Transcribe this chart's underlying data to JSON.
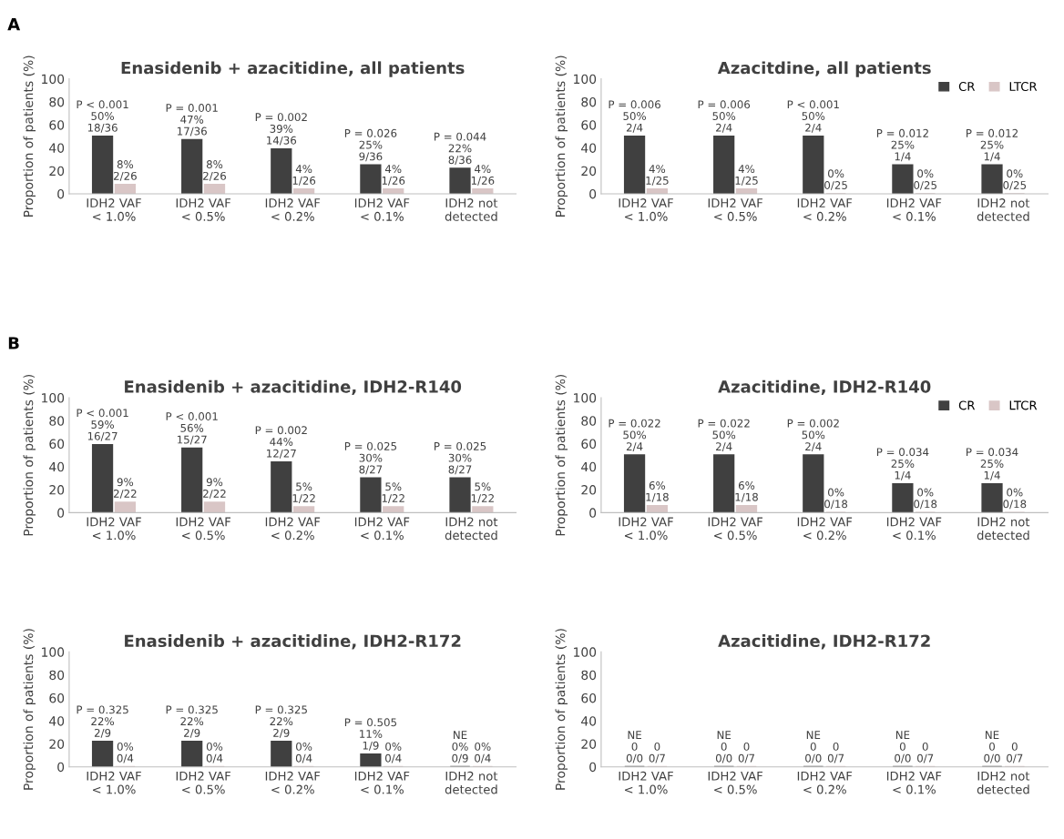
{
  "chart_data": [
    {
      "type": "bar",
      "title": "Enasidenib + azacitidine, all patients",
      "ylabel": "Proportion of patients (%)",
      "categories": [
        "IDH2 VAF\n< 1.0%",
        "IDH2 VAF\n< 0.5%",
        "IDH2 VAF\n< 0.2%",
        "IDH2 VAF\n< 0.1%",
        "IDH2 not\ndetected"
      ],
      "ylim": [
        0,
        100
      ],
      "yticks": [
        0,
        20,
        40,
        60,
        80,
        100
      ],
      "annotations": [
        "A"
      ],
      "series": [
        {
          "color": "#404040",
          "values": [
            50,
            47,
            39,
            25,
            22
          ],
          "value_labels": [
            "P < 0.001\n50%\n18/36",
            "P = 0.001\n47%\n17/36",
            "P = 0.002\n39%\n14/36",
            "P = 0.026\n25%\n9/36",
            "P = 0.044\n22%\n8/36"
          ]
        },
        {
          "color": "#d9c6c6",
          "values": [
            8,
            8,
            4,
            4,
            4
          ],
          "value_labels": [
            "8%\n2/26",
            "8%\n2/26",
            "4%\n1/26",
            "4%\n1/26",
            "4%\n1/26"
          ]
        }
      ]
    },
    {
      "type": "bar",
      "title": "Azacitdine, all patients",
      "ylabel": "Proportion of patients (%)",
      "categories": [
        "IDH2 VAF\n< 1.0%",
        "IDH2 VAF\n< 0.5%",
        "IDH2 VAF\n< 0.2%",
        "IDH2 VAF\n< 0.1%",
        "IDH2 not\ndetected"
      ],
      "ylim": [
        0,
        100
      ],
      "yticks": [
        0,
        20,
        40,
        60,
        80,
        100
      ],
      "legend": "top right",
      "series": [
        {
          "name": "CR",
          "color": "#404040",
          "values": [
            50,
            50,
            50,
            25,
            25
          ],
          "value_labels": [
            "P = 0.006\n50%\n2/4",
            "P = 0.006\n50%\n2/4",
            "P < 0.001\n50%\n2/4",
            "P = 0.012\n25%\n1/4",
            "P = 0.012\n25%\n1/4"
          ]
        },
        {
          "name": "LTCR",
          "color": "#d9c6c6",
          "values": [
            4,
            4,
            0,
            0,
            0
          ],
          "value_labels": [
            "4%\n1/25",
            "4%\n1/25",
            "0%\n0/25",
            "0%\n0/25",
            "0%\n0/25"
          ]
        }
      ]
    },
    {
      "type": "bar",
      "title": "Enasidenib + azacitidine, IDH2-R140",
      "ylabel": "Proportion of patients (%)",
      "categories": [
        "IDH2 VAF\n< 1.0%",
        "IDH2 VAF\n< 0.5%",
        "IDH2 VAF\n< 0.2%",
        "IDH2 VAF\n< 0.1%",
        "IDH2 not\ndetected"
      ],
      "ylim": [
        0,
        100
      ],
      "yticks": [
        0,
        20,
        40,
        60,
        80,
        100
      ],
      "annotations": [
        "B"
      ],
      "series": [
        {
          "color": "#404040",
          "values": [
            59,
            56,
            44,
            30,
            30
          ],
          "value_labels": [
            "P < 0.001\n59%\n16/27",
            "P < 0.001\n56%\n15/27",
            "P = 0.002\n44%\n12/27",
            "P = 0.025\n30%\n8/27",
            "P = 0.025\n30%\n8/27"
          ]
        },
        {
          "color": "#d9c6c6",
          "values": [
            9,
            9,
            5,
            5,
            5
          ],
          "value_labels": [
            "9%\n2/22",
            "9%\n2/22",
            "5%\n1/22",
            "5%\n1/22",
            "5%\n1/22"
          ]
        }
      ]
    },
    {
      "type": "bar",
      "title": "Azacitidine, IDH2-R140",
      "ylabel": "Proportion of patients (%)",
      "categories": [
        "IDH2 VAF\n< 1.0%",
        "IDH2 VAF\n< 0.5%",
        "IDH2 VAF\n< 0.2%",
        "IDH2 VAF\n< 0.1%",
        "IDH2 not\ndetected"
      ],
      "ylim": [
        0,
        100
      ],
      "yticks": [
        0,
        20,
        40,
        60,
        80,
        100
      ],
      "legend": "top right",
      "series": [
        {
          "name": "CR",
          "color": "#404040",
          "values": [
            50,
            50,
            50,
            25,
            25
          ],
          "value_labels": [
            "P = 0.022\n50%\n2/4",
            "P = 0.022\n50%\n2/4",
            "P = 0.002\n50%\n2/4",
            "P = 0.034\n25%\n1/4",
            "P = 0.034\n25%\n1/4"
          ]
        },
        {
          "name": "LTCR",
          "color": "#d9c6c6",
          "values": [
            6,
            6,
            0,
            0,
            0
          ],
          "value_labels": [
            "6%\n1/18",
            "6%\n1/18",
            "0%\n0/18",
            "0%\n0/18",
            "0%\n0/18"
          ]
        }
      ]
    },
    {
      "type": "bar",
      "title": "Enasidenib + azacitidine, IDH2-R172",
      "ylabel": "Proportion of patients (%)",
      "categories": [
        "IDH2 VAF\n< 1.0%",
        "IDH2 VAF\n< 0.5%",
        "IDH2 VAF\n< 0.2%",
        "IDH2 VAF\n< 0.1%",
        "IDH2 not\ndetected"
      ],
      "ylim": [
        0,
        100
      ],
      "yticks": [
        0,
        20,
        40,
        60,
        80,
        100
      ],
      "series": [
        {
          "color": "#404040",
          "values": [
            22,
            22,
            22,
            11,
            0
          ],
          "value_labels": [
            "P = 0.325\n22%\n2/9",
            "P = 0.325\n22%\n2/9",
            "P = 0.325\n22%\n2/9",
            "P = 0.505\n11%\n1/9",
            "NE\n0%\n0/9"
          ]
        },
        {
          "color": "#d9c6c6",
          "values": [
            0,
            0,
            0,
            0,
            0
          ],
          "value_labels": [
            "0%\n0/4",
            "0%\n0/4",
            "0%\n0/4",
            "0%\n0/4",
            "0%\n0/4"
          ]
        }
      ]
    },
    {
      "type": "bar",
      "title": "Azacitidine, IDH2-R172",
      "ylabel": "Proportion of patients (%)",
      "categories": [
        "IDH2 VAF\n< 1.0%",
        "IDH2 VAF\n< 0.5%",
        "IDH2 VAF\n< 0.2%",
        "IDH2 VAF\n< 0.1%",
        "IDH2 not\ndetected"
      ],
      "ylim": [
        0,
        100
      ],
      "yticks": [
        0,
        20,
        40,
        60,
        80,
        100
      ],
      "series": [
        {
          "color": "#404040",
          "values": [
            0,
            0,
            0,
            0,
            0
          ],
          "value_labels": [
            "NE\n0\n0/0",
            "NE\n0\n0/0",
            "NE\n0\n0/0",
            "NE\n0\n0/0",
            "NE\n0\n0/0"
          ]
        },
        {
          "color": "#d9c6c6",
          "values": [
            0,
            0,
            0,
            0,
            0
          ],
          "value_labels": [
            "0\n0/7",
            "0\n0/7",
            "0\n0/7",
            "0\n0/7",
            "0\n0/7"
          ]
        }
      ]
    }
  ]
}
